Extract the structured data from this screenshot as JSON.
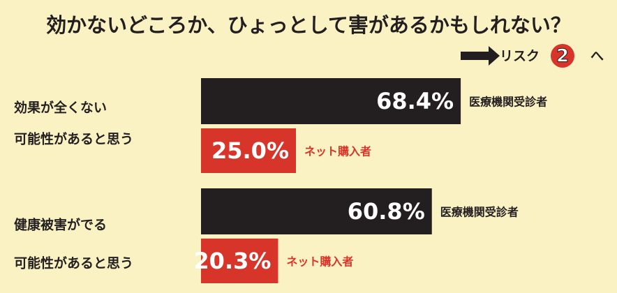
{
  "chart_data": {
    "type": "bar",
    "orientation": "horizontal",
    "title": "効かないどころか、ひょっとして害があるかもしれない？",
    "annotation": [
      "リスク",
      "2",
      "へ"
    ],
    "categories": [
      [
        "効果が全くない",
        "可能性があると思う"
      ],
      [
        "健康被害がでる",
        "可能性があると思う"
      ]
    ],
    "series": [
      {
        "name": "医療機関受診者",
        "color": "#231f20",
        "values": [
          68.4,
          60.8
        ],
        "value_labels": [
          "68.4%",
          "60.8%"
        ]
      },
      {
        "name": "ネット購入者",
        "color": "#d8352a",
        "values": [
          25.0,
          20.3
        ],
        "value_labels": [
          "25.0%",
          "20.3%"
        ]
      }
    ]
  }
}
